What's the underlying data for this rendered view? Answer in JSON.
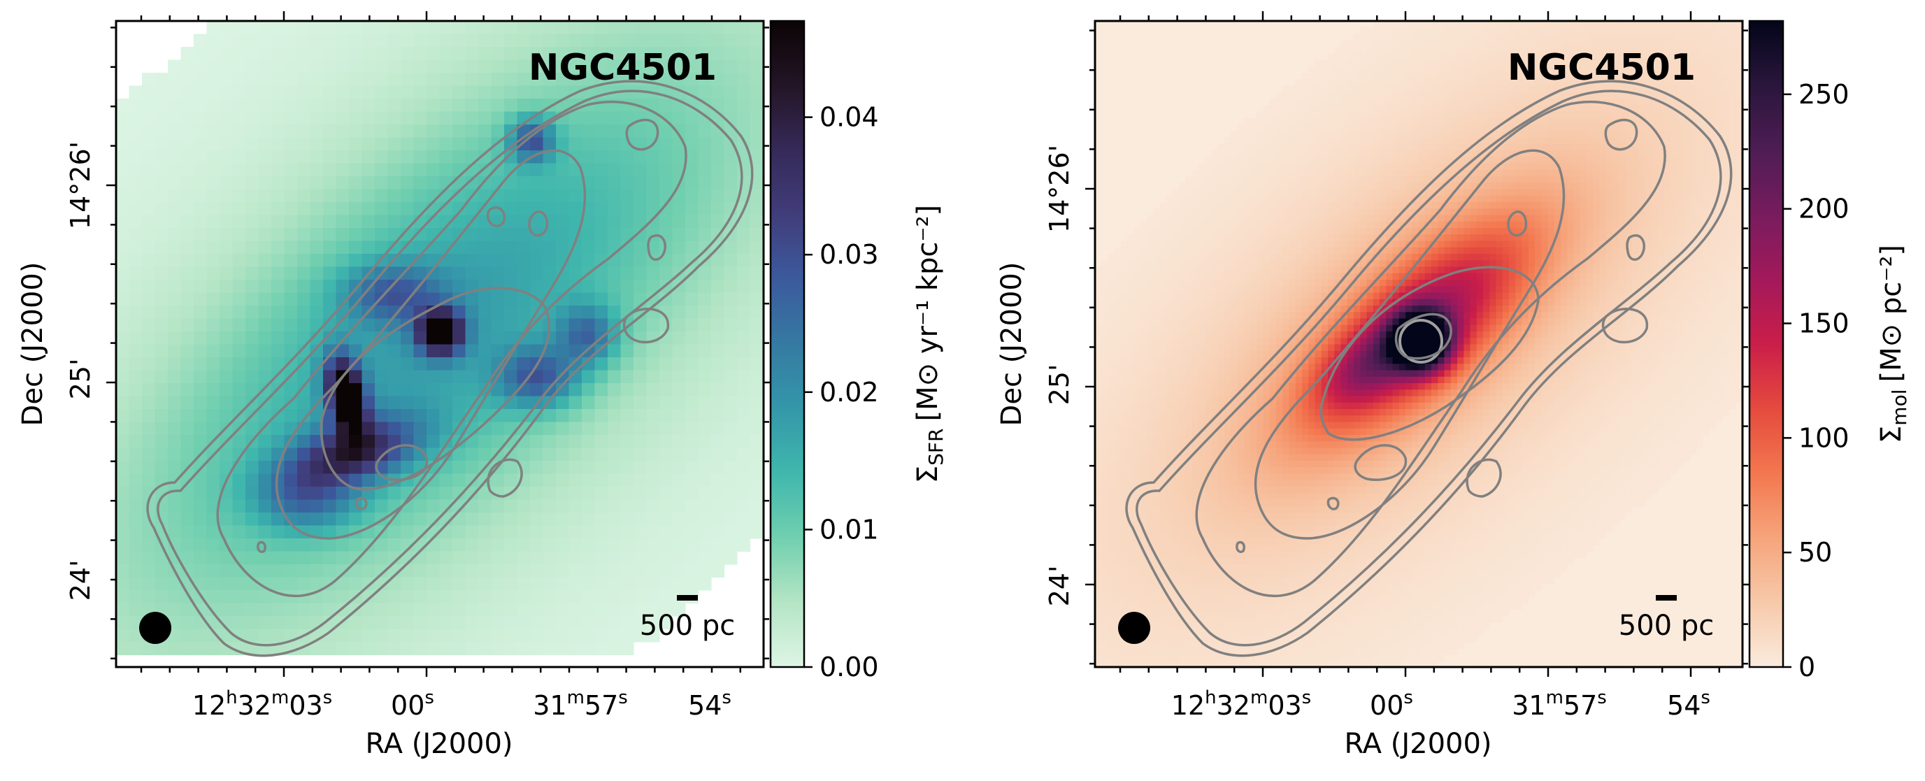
{
  "chart_data": [
    {
      "type": "heatmap",
      "title": "NGC4501",
      "xlabel": "RA (J2000)",
      "ylabel": "Dec (J2000)",
      "x_ticks": [
        {
          "h": "12",
          "m": "32",
          "s": "03",
          "full": true
        },
        {
          "s": "00",
          "full": false
        },
        {
          "m": "31",
          "s": "57",
          "full": true,
          "nohour": true
        },
        {
          "s": "54",
          "full": false
        }
      ],
      "y_ticks": [
        "14°26'",
        "25'",
        "24'"
      ],
      "colorbar": {
        "label_main": "Σ",
        "label_sub": "SFR",
        "label_units": "[M⊙ yr⁻¹ kpc⁻²]",
        "ticks": [
          "0.00",
          "0.01",
          "0.02",
          "0.03",
          "0.04"
        ],
        "range": [
          0,
          0.047
        ],
        "colormap": "mako_r",
        "colors": [
          "#def5e5",
          "#b4e5c5",
          "#71cfaf",
          "#40b7ad",
          "#3497a9",
          "#357aa2",
          "#3b5a9d",
          "#413d7b",
          "#352a59",
          "#231526",
          "#0b0405"
        ]
      },
      "scale_bar": "500 pc",
      "beam": "filled circle"
    },
    {
      "type": "heatmap",
      "title": "NGC4501",
      "xlabel": "RA (J2000)",
      "ylabel": "Dec (J2000)",
      "x_ticks": [
        {
          "h": "12",
          "m": "32",
          "s": "03",
          "full": true
        },
        {
          "s": "00",
          "full": false
        },
        {
          "m": "31",
          "s": "57",
          "full": true,
          "nohour": true
        },
        {
          "s": "54",
          "full": false
        }
      ],
      "y_ticks": [
        "14°26'",
        "25'",
        "24'"
      ],
      "colorbar": {
        "label_main": "Σ",
        "label_sub": "mol",
        "label_units": "[M⊙ pc⁻²]",
        "ticks": [
          "0",
          "50",
          "100",
          "150",
          "200",
          "250"
        ],
        "range": [
          0,
          282
        ],
        "colormap": "rocket_r",
        "colors": [
          "#faebdd",
          "#f7c9aa",
          "#f6a47b",
          "#f3774f",
          "#e54a3e",
          "#ca1e49",
          "#a3195b",
          "#781c5e",
          "#4e1d54",
          "#2a163c",
          "#03051a"
        ]
      },
      "scale_bar": "500 pc",
      "beam": "filled circle"
    }
  ]
}
